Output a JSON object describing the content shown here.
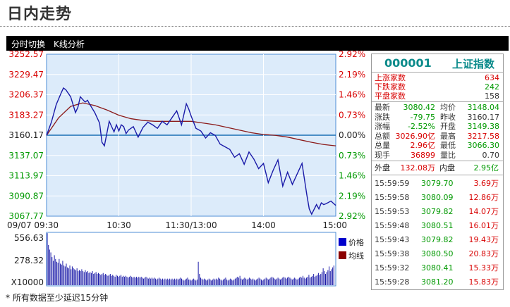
{
  "page": {
    "title": "日内走势"
  },
  "toolbar": {
    "tab_time": "分时切换",
    "tab_kline": "K线分析"
  },
  "colors": {
    "price_line": "#1a1aa8",
    "avg_line": "#8b1a1a",
    "up": "#d80000",
    "down": "#009900",
    "plot_bg": "#dcebfa",
    "plot_border": "#4c8cd6",
    "baseline": "#1a6fb5",
    "volume_bar": "#1a1aa8"
  },
  "chart_data": {
    "type": "line",
    "price_axis": {
      "ticks": [
        "3252.57",
        "3229.47",
        "3206.37",
        "3183.27",
        "3160.17",
        "3137.07",
        "3113.97",
        "3090.87",
        "3067.77"
      ],
      "ylim": [
        3067.77,
        3252.57
      ],
      "baseline": 3160.17
    },
    "pct_axis": {
      "ticks": [
        "2.92%",
        "2.19%",
        "1.46%",
        "0.73%",
        "0.00%",
        "0.73%",
        "1.46%",
        "2.19%",
        "2.92%"
      ]
    },
    "x_ticks": [
      "09/07 09:30",
      "10:30",
      "11:30/13:00",
      "14:00",
      "15:00"
    ],
    "total_minutes": 240,
    "price": {
      "name": "价格",
      "x": [
        0,
        4,
        8,
        12,
        14,
        16,
        20,
        24,
        26,
        28,
        32,
        34,
        36,
        40,
        44,
        46,
        48,
        50,
        52,
        54,
        56,
        58,
        60,
        62,
        64,
        66,
        68,
        72,
        76,
        80,
        84,
        88,
        92,
        96,
        100,
        104,
        108,
        112,
        114,
        116,
        118,
        120,
        124,
        128,
        132,
        136,
        140,
        144,
        148,
        152,
        156,
        160,
        164,
        168,
        172,
        176,
        180,
        184,
        188,
        192,
        196,
        200,
        204,
        208,
        212,
        214,
        216,
        218,
        220,
        224,
        226,
        228,
        230,
        232,
        236,
        240
      ],
      "values": [
        3160,
        3175,
        3195,
        3208,
        3214,
        3212,
        3204,
        3186,
        3192,
        3204,
        3198,
        3200,
        3195,
        3186,
        3174,
        3152,
        3148,
        3162,
        3176,
        3170,
        3164,
        3172,
        3165,
        3172,
        3170,
        3162,
        3166,
        3170,
        3158,
        3169,
        3175,
        3172,
        3168,
        3176,
        3172,
        3180,
        3188,
        3172,
        3184,
        3196,
        3190,
        3182,
        3168,
        3165,
        3157,
        3163,
        3160,
        3150,
        3147,
        3144,
        3135,
        3139,
        3127,
        3141,
        3133,
        3122,
        3128,
        3106,
        3120,
        3132,
        3102,
        3118,
        3104,
        3116,
        3128,
        3110,
        3092,
        3076,
        3070,
        3081,
        3076,
        3083,
        3081,
        3082,
        3085,
        3080
      ]
    },
    "avg": {
      "name": "均线",
      "x": [
        0,
        10,
        20,
        30,
        40,
        50,
        60,
        70,
        80,
        90,
        100,
        110,
        120,
        130,
        140,
        150,
        160,
        170,
        180,
        190,
        200,
        210,
        220,
        230,
        240
      ],
      "values": [
        3160,
        3180,
        3193,
        3197,
        3194,
        3189,
        3183,
        3179,
        3177,
        3176,
        3176,
        3176,
        3176,
        3174,
        3172,
        3169,
        3166,
        3163,
        3161,
        3160,
        3158,
        3155,
        3152,
        3149.5,
        3148
      ]
    },
    "volume": {
      "ticks": [
        "556.63",
        "278.32"
      ],
      "unit_label": "X10000",
      "ylim": [
        0,
        556.63
      ],
      "values": [
        556,
        430,
        380,
        350,
        300,
        260,
        320,
        280,
        250,
        240,
        280,
        230,
        220,
        260,
        210,
        200,
        230,
        190,
        180,
        210,
        170,
        200,
        180,
        170,
        160,
        180,
        150,
        160,
        150,
        170,
        150,
        140,
        160,
        140,
        150,
        130,
        140,
        130,
        150,
        120,
        130,
        140,
        120,
        130,
        120,
        110,
        120,
        130,
        110,
        120,
        110,
        100,
        110,
        120,
        100,
        110,
        100,
        90,
        110,
        100,
        90,
        100,
        110,
        90,
        100,
        90,
        100,
        90,
        80,
        90,
        100,
        90,
        80,
        90,
        80,
        90,
        80,
        90,
        80,
        90,
        80,
        70,
        80,
        90,
        80,
        70,
        80,
        70,
        80,
        70,
        80,
        70,
        60,
        70,
        80,
        70,
        60,
        70,
        60,
        70,
        60,
        70,
        60,
        70,
        60,
        70,
        60,
        70,
        60,
        70,
        60,
        70,
        80,
        70,
        60,
        50,
        60,
        70,
        80,
        60,
        60,
        50,
        60,
        70,
        60,
        50,
        60,
        250,
        120,
        80,
        70,
        60,
        70,
        60,
        50,
        60,
        70,
        60,
        50,
        60,
        70,
        60,
        70,
        60,
        80,
        70,
        60,
        50,
        60,
        70,
        80,
        60,
        50,
        60,
        70,
        60,
        50,
        60,
        70,
        80,
        90,
        80,
        100,
        70,
        60,
        70,
        80,
        70,
        60,
        70,
        80,
        70,
        60,
        70,
        60,
        50,
        60,
        70,
        80,
        70,
        60,
        50,
        60,
        70,
        80,
        70,
        60,
        70,
        80,
        90,
        80,
        70,
        60,
        70,
        80,
        70,
        60,
        70,
        80,
        90,
        80,
        70,
        80,
        90,
        80,
        70,
        60,
        70,
        80,
        70,
        60,
        70,
        80,
        90,
        80,
        100,
        80,
        70,
        80,
        90,
        110,
        80,
        90,
        100,
        120,
        90,
        100,
        110,
        130,
        110,
        120,
        140,
        180,
        150,
        120,
        140,
        160,
        200,
        150,
        170,
        190,
        210
      ]
    },
    "legend": {
      "price_label": "价格",
      "avg_label": "均线",
      "position": "right-bottom"
    }
  },
  "sidebar": {
    "code": "000001",
    "name": "上证指数",
    "breadth": [
      {
        "label": "上涨家数",
        "value": "634"
      },
      {
        "label": "下跌家数",
        "value": "242"
      },
      {
        "label": "平盘家数",
        "value": "158"
      }
    ],
    "stats": [
      {
        "l1": "最新",
        "v1": "3080.42",
        "c1": "green",
        "l2": "均价",
        "v2": "3148.04",
        "c2": "green"
      },
      {
        "l1": "涨跌",
        "v1": "-79.75",
        "c1": "green",
        "l2": "昨收",
        "v2": "3160.17",
        "c2": "dark"
      },
      {
        "l1": "涨幅",
        "v1": "-2.52%",
        "c1": "green",
        "l2": "开盘",
        "v2": "3149.38",
        "c2": "green"
      },
      {
        "l1": "总额",
        "v1": "3026.90亿",
        "c1": "red",
        "l2": "最高",
        "v2": "3217.58",
        "c2": "red"
      },
      {
        "l1": "总量",
        "v1": "2.96亿",
        "c1": "red",
        "l2": "最低",
        "v2": "3066.30",
        "c2": "green"
      },
      {
        "l1": "现手",
        "v1": "36899",
        "c1": "red",
        "l2": "量比",
        "v2": "0.70",
        "c2": "dark"
      }
    ],
    "outer_label": "外盘",
    "outer_value": "132.08万",
    "inner_label": "内盘",
    "inner_value": "2.95亿",
    "ticks": [
      {
        "time": "15:59:59",
        "price": "3079.70",
        "vol": "3.69万"
      },
      {
        "time": "15:59:58",
        "price": "3080.09",
        "vol": "12.86万"
      },
      {
        "time": "15:59:53",
        "price": "3079.82",
        "vol": "14.07万"
      },
      {
        "time": "15:59:48",
        "price": "3080.51",
        "vol": "16.01万"
      },
      {
        "time": "15:59:43",
        "price": "3079.82",
        "vol": "19.43万"
      },
      {
        "time": "15:59:38",
        "price": "3080.50",
        "vol": "20.83万"
      },
      {
        "time": "15:59:32",
        "price": "3080.41",
        "vol": "15.33万"
      },
      {
        "time": "15:59:28",
        "price": "3081.20",
        "vol": "15.83万"
      }
    ]
  },
  "footnote": "*  所有数据至少延迟15分钟"
}
